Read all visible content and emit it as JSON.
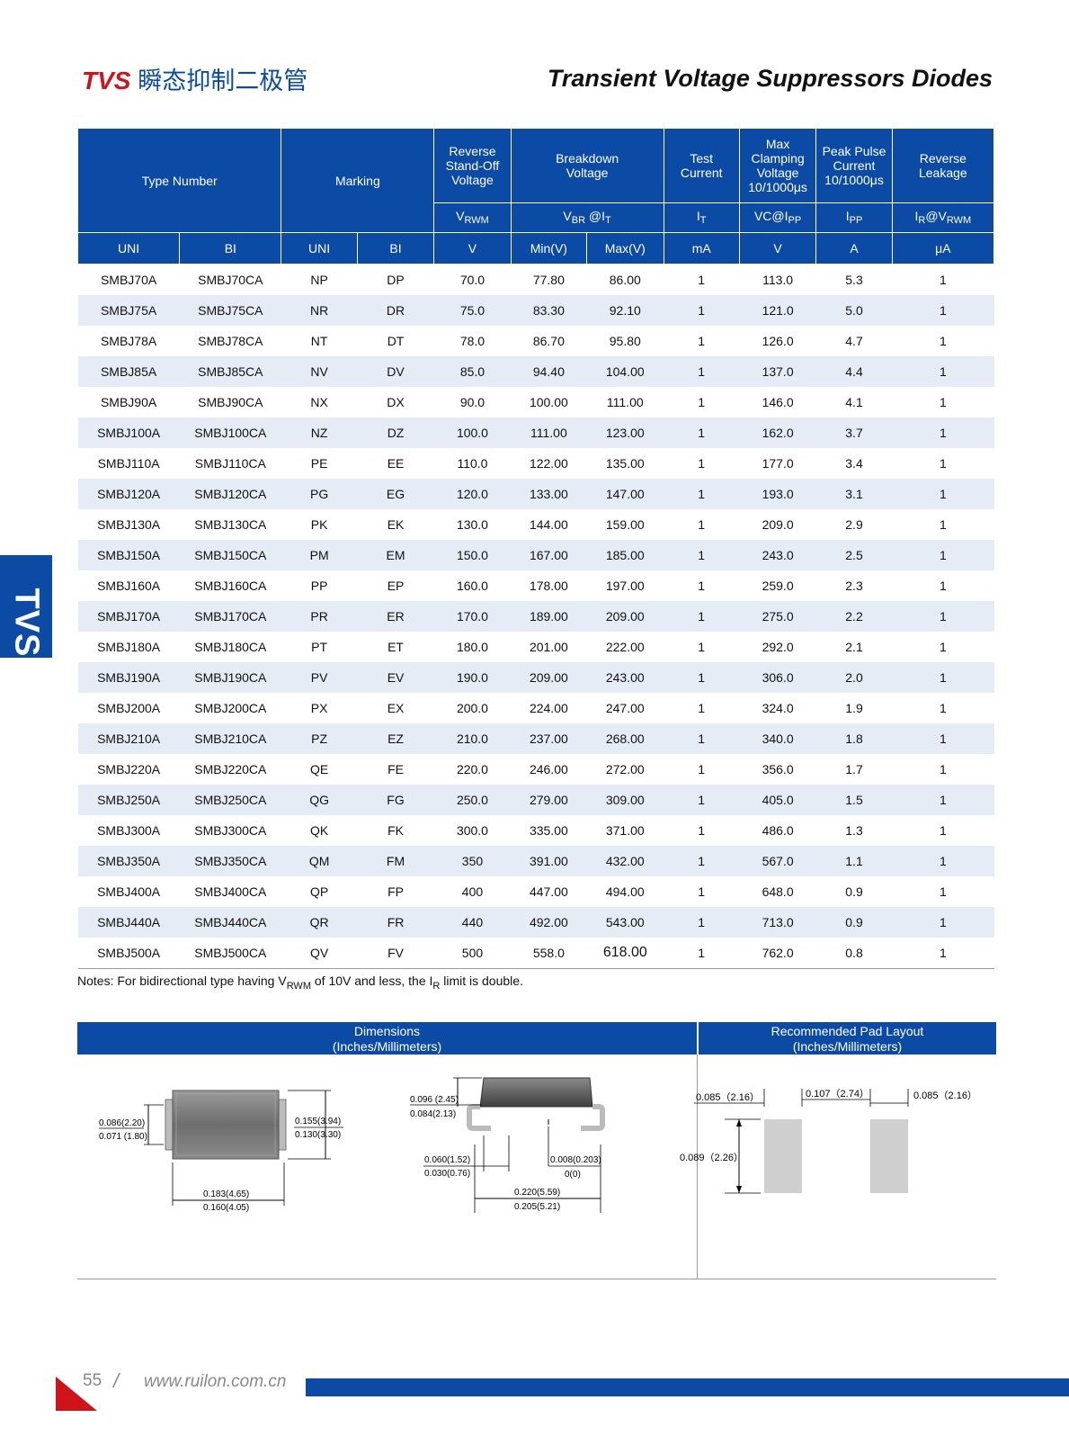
{
  "header": {
    "brand": "TVS",
    "title_cn": "瞬态抑制二极管",
    "title_en": "Transient Voltage Suppressors Diodes"
  },
  "side_tab": "TVS",
  "table": {
    "group_headers": {
      "type_number": "Type Number",
      "marking": "Marking",
      "reverse_standoff": "Reverse Stand-Off Voltage",
      "breakdown": "Breakdown Voltage",
      "test_current": "Test Current",
      "max_clamping": "Max Clamping Voltage 10/1000μs",
      "peak_pulse": "Peak Pulse Current 10/1000μs",
      "reverse_leakage": "Reverse Leakage"
    },
    "symbol_headers": {
      "vrwm_main": "V",
      "vrwm_sub": "RWM",
      "vbr_main": "V",
      "vbr_sub": "BR",
      "vbr_at": " @I",
      "vbr_at_sub": "T",
      "it_main": "I",
      "it_sub": "T",
      "vc": "VC@I",
      "vc_sub": "PP",
      "ipp_main": "I",
      "ipp_sub": "PP",
      "ir_main": "I",
      "ir_sub": "R",
      "ir_at": "@V",
      "ir_at_sub": "RWM"
    },
    "unit_headers": [
      "UNI",
      "BI",
      "UNI",
      "BI",
      "V",
      "Min(V)",
      "Max(V)",
      "mA",
      "V",
      "A",
      "μA"
    ],
    "rows": [
      [
        "SMBJ70A",
        "SMBJ70CA",
        "NP",
        "DP",
        "70.0",
        "77.80",
        "86.00",
        "1",
        "113.0",
        "5.3",
        "1"
      ],
      [
        "SMBJ75A",
        "SMBJ75CA",
        "NR",
        "DR",
        "75.0",
        "83.30",
        "92.10",
        "1",
        "121.0",
        "5.0",
        "1"
      ],
      [
        "SMBJ78A",
        "SMBJ78CA",
        "NT",
        "DT",
        "78.0",
        "86.70",
        "95.80",
        "1",
        "126.0",
        "4.7",
        "1"
      ],
      [
        "SMBJ85A",
        "SMBJ85CA",
        "NV",
        "DV",
        "85.0",
        "94.40",
        "104.00",
        "1",
        "137.0",
        "4.4",
        "1"
      ],
      [
        "SMBJ90A",
        "SMBJ90CA",
        "NX",
        "DX",
        "90.0",
        "100.00",
        "111.00",
        "1",
        "146.0",
        "4.1",
        "1"
      ],
      [
        "SMBJ100A",
        "SMBJ100CA",
        "NZ",
        "DZ",
        "100.0",
        "111.00",
        "123.00",
        "1",
        "162.0",
        "3.7",
        "1"
      ],
      [
        "SMBJ110A",
        "SMBJ110CA",
        "PE",
        "EE",
        "110.0",
        "122.00",
        "135.00",
        "1",
        "177.0",
        "3.4",
        "1"
      ],
      [
        "SMBJ120A",
        "SMBJ120CA",
        "PG",
        "EG",
        "120.0",
        "133.00",
        "147.00",
        "1",
        "193.0",
        "3.1",
        "1"
      ],
      [
        "SMBJ130A",
        "SMBJ130CA",
        "PK",
        "EK",
        "130.0",
        "144.00",
        "159.00",
        "1",
        "209.0",
        "2.9",
        "1"
      ],
      [
        "SMBJ150A",
        "SMBJ150CA",
        "PM",
        "EM",
        "150.0",
        "167.00",
        "185.00",
        "1",
        "243.0",
        "2.5",
        "1"
      ],
      [
        "SMBJ160A",
        "SMBJ160CA",
        "PP",
        "EP",
        "160.0",
        "178.00",
        "197.00",
        "1",
        "259.0",
        "2.3",
        "1"
      ],
      [
        "SMBJ170A",
        "SMBJ170CA",
        "PR",
        "ER",
        "170.0",
        "189.00",
        "209.00",
        "1",
        "275.0",
        "2.2",
        "1"
      ],
      [
        "SMBJ180A",
        "SMBJ180CA",
        "PT",
        "ET",
        "180.0",
        "201.00",
        "222.00",
        "1",
        "292.0",
        "2.1",
        "1"
      ],
      [
        "SMBJ190A",
        "SMBJ190CA",
        "PV",
        "EV",
        "190.0",
        "209.00",
        "243.00",
        "1",
        "306.0",
        "2.0",
        "1"
      ],
      [
        "SMBJ200A",
        "SMBJ200CA",
        "PX",
        "EX",
        "200.0",
        "224.00",
        "247.00",
        "1",
        "324.0",
        "1.9",
        "1"
      ],
      [
        "SMBJ210A",
        "SMBJ210CA",
        "PZ",
        "EZ",
        "210.0",
        "237.00",
        "268.00",
        "1",
        "340.0",
        "1.8",
        "1"
      ],
      [
        "SMBJ220A",
        "SMBJ220CA",
        "QE",
        "FE",
        "220.0",
        "246.00",
        "272.00",
        "1",
        "356.0",
        "1.7",
        "1"
      ],
      [
        "SMBJ250A",
        "SMBJ250CA",
        "QG",
        "FG",
        "250.0",
        "279.00",
        "309.00",
        "1",
        "405.0",
        "1.5",
        "1"
      ],
      [
        "SMBJ300A",
        "SMBJ300CA",
        "QK",
        "FK",
        "300.0",
        "335.00",
        "371.00",
        "1",
        "486.0",
        "1.3",
        "1"
      ],
      [
        "SMBJ350A",
        "SMBJ350CA",
        "QM",
        "FM",
        "350",
        "391.00",
        "432.00",
        "1",
        "567.0",
        "1.1",
        "1"
      ],
      [
        "SMBJ400A",
        "SMBJ400CA",
        "QP",
        "FP",
        "400",
        "447.00",
        "494.00",
        "1",
        "648.0",
        "0.9",
        "1"
      ],
      [
        "SMBJ440A",
        "SMBJ440CA",
        "QR",
        "FR",
        "440",
        "492.00",
        "543.00",
        "1",
        "713.0",
        "0.9",
        "1"
      ],
      [
        "SMBJ500A",
        "SMBJ500CA",
        "QV",
        "FV",
        "500",
        "558.0",
        "618.00",
        "1",
        "762.0",
        "0.8",
        "1"
      ]
    ]
  },
  "notes": {
    "part1": "Notes: For bidirectional type having V",
    "sub1": "RWM",
    "part2": " of 10V and less, the I",
    "sub2": "R",
    "part3": " limit is double."
  },
  "dimensions": {
    "header_line1": "Dimensions",
    "header_line2": "(Inches/Millimeters)",
    "pad_header_line1": "Recommended Pad Layout",
    "pad_header_line2": "(Inches/Millimeters)",
    "top_view": {
      "height_max": "0.086(2.20)",
      "height_min": "0.071 (1.80)",
      "width_max": "0.155(3.94)",
      "width_min": "0.130(3.30)",
      "length_max": "0.183(4.65)",
      "length_min": "0.160(4.05)"
    },
    "side_view": {
      "thick_max": "0.096 (2.45)",
      "thick_min": "0.084(2.13)",
      "lead_max": "0.060(1.52)",
      "lead_min": "0.030(0.76)",
      "standoff_max": "0.008(0.203)",
      "standoff_min": "0(0)",
      "overall_max": "0.220(5.59)",
      "overall_min": "0.205(5.21)"
    },
    "pad": {
      "pad_width_left": "0.085（2.16）",
      "gap": "0.107（2.74）",
      "pad_width_right": "0.085（2.16）",
      "pad_height": "0.089（2.26）"
    }
  },
  "footer": {
    "page": "55",
    "slash": "/",
    "url": "www.ruilon.com.cn"
  },
  "colors": {
    "brand_blue": "#0b4ba6",
    "brand_red": "#d0121b",
    "stripe": "#e6ecf6"
  }
}
